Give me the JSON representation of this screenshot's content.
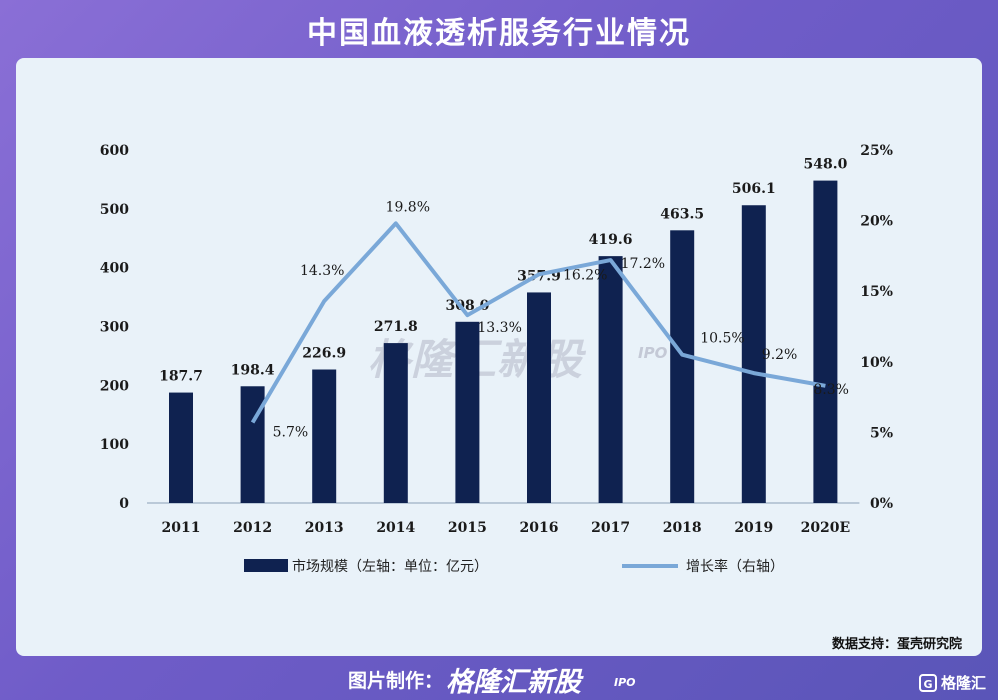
{
  "header": {
    "title": "中国血液透析服务行业情况"
  },
  "watermark": {
    "brand": "格隆汇新股",
    "tag": "IPO"
  },
  "source": {
    "text": "数据支持：蛋壳研究院"
  },
  "footer": {
    "caption": "图片制作：",
    "brand": "格隆汇新股",
    "tag": "IPO",
    "logo_text": "格隆汇",
    "logo_mark": "G"
  },
  "colors": {
    "bar": "#0f2250",
    "line": "#7aa8d8",
    "card": "#e9f2f9"
  },
  "chart_data": {
    "type": "bar",
    "title": "",
    "categories": [
      "2011",
      "2012",
      "2013",
      "2014",
      "2015",
      "2016",
      "2017",
      "2018",
      "2019",
      "2020E"
    ],
    "y_left": {
      "min": 0,
      "max": 600,
      "ticks": [
        "0",
        "100",
        "200",
        "300",
        "400",
        "500",
        "600"
      ]
    },
    "y_right": {
      "min": 0,
      "max": 25,
      "ticks": [
        "0%",
        "5%",
        "10%",
        "15%",
        "20%",
        "25%"
      ]
    },
    "series": [
      {
        "name": "市场规模（左轴：单位：亿元）",
        "type": "bar",
        "axis": "left",
        "values": [
          187.7,
          198.4,
          226.9,
          271.8,
          308.0,
          357.9,
          419.6,
          463.5,
          506.1,
          548.0
        ],
        "labels": [
          "187.7",
          "198.4",
          "226.9",
          "271.8",
          "308.0",
          "357.9",
          "419.6",
          "463.5",
          "506.1",
          "548.0"
        ]
      },
      {
        "name": "增长率（右轴）",
        "type": "line",
        "axis": "right",
        "values": [
          null,
          5.7,
          14.3,
          19.8,
          13.3,
          16.2,
          17.2,
          10.5,
          9.2,
          8.3
        ],
        "labels": [
          "",
          "5.7%",
          "14.3%",
          "19.8%",
          "13.3%",
          "16.2%",
          "17.2%",
          "10.5%",
          "9.2%",
          "8.3%"
        ]
      }
    ],
    "legend": "bottom",
    "grid": false
  }
}
